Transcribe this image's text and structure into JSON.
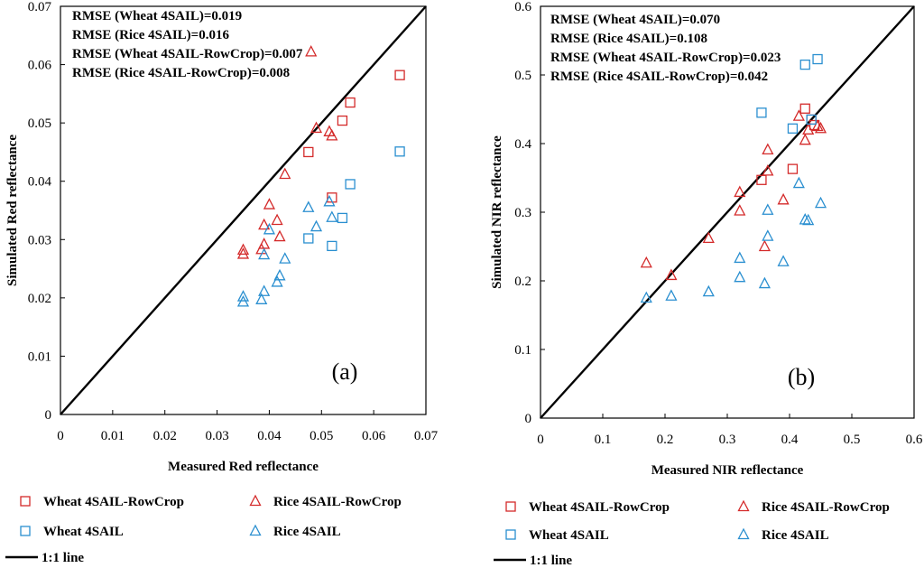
{
  "colors": {
    "red": "#d42a2a",
    "blue": "#2a8fd0",
    "axis": "#000000"
  },
  "chart_data": [
    {
      "type": "scatter",
      "panel_label": "(a)",
      "xlabel": "Measured Red  reflectance",
      "ylabel": "Simulated Red  reflectance",
      "xlim": [
        0,
        0.07
      ],
      "ylim": [
        0,
        0.07
      ],
      "xticks": [
        "0",
        "0.01",
        "0.02",
        "0.03",
        "0.04",
        "0.05",
        "0.06",
        "0.07"
      ],
      "yticks": [
        "0",
        "0.01",
        "0.02",
        "0.03",
        "0.04",
        "0.05",
        "0.06",
        "0.07"
      ],
      "annotations": [
        "RMSE (Wheat 4SAIL)=0.019",
        "RMSE (Rice 4SAIL)=0.016",
        "RMSE (Wheat 4SAIL-RowCrop)=0.007",
        "RMSE (Rice 4SAIL-RowCrop)=0.008"
      ],
      "reference_line": "1:1 line",
      "series": [
        {
          "name": "Wheat 4SAIL-RowCrop",
          "marker": "square",
          "color": "red",
          "points": [
            [
              0.0475,
              0.045
            ],
            [
              0.052,
              0.0372
            ],
            [
              0.054,
              0.0504
            ],
            [
              0.0555,
              0.0535
            ],
            [
              0.065,
              0.0582
            ]
          ]
        },
        {
          "name": "Rice 4SAIL-RowCrop",
          "marker": "triangle",
          "color": "red",
          "points": [
            [
              0.035,
              0.0282
            ],
            [
              0.035,
              0.0275
            ],
            [
              0.0385,
              0.0283
            ],
            [
              0.039,
              0.0292
            ],
            [
              0.039,
              0.0325
            ],
            [
              0.04,
              0.036
            ],
            [
              0.0415,
              0.0333
            ],
            [
              0.042,
              0.0305
            ],
            [
              0.043,
              0.0412
            ],
            [
              0.049,
              0.0491
            ],
            [
              0.0515,
              0.0485
            ],
            [
              0.052,
              0.0478
            ],
            [
              0.048,
              0.0622
            ]
          ]
        },
        {
          "name": "Wheat 4SAIL",
          "marker": "square",
          "color": "blue",
          "points": [
            [
              0.0475,
              0.0302
            ],
            [
              0.052,
              0.0289
            ],
            [
              0.054,
              0.0337
            ],
            [
              0.0555,
              0.0395
            ],
            [
              0.065,
              0.0451
            ]
          ]
        },
        {
          "name": "Rice 4SAIL",
          "marker": "triangle",
          "color": "blue",
          "points": [
            [
              0.035,
              0.0202
            ],
            [
              0.035,
              0.0193
            ],
            [
              0.0385,
              0.0197
            ],
            [
              0.039,
              0.0211
            ],
            [
              0.039,
              0.0274
            ],
            [
              0.04,
              0.0317
            ],
            [
              0.0415,
              0.0227
            ],
            [
              0.042,
              0.0238
            ],
            [
              0.043,
              0.0267
            ],
            [
              0.0475,
              0.0355
            ],
            [
              0.049,
              0.0322
            ],
            [
              0.0515,
              0.0365
            ],
            [
              0.052,
              0.0338
            ]
          ]
        }
      ]
    },
    {
      "type": "scatter",
      "panel_label": "(b)",
      "xlabel": "Measured NIR  reflectance",
      "ylabel": "Simulated NIR  reflectance",
      "xlim": [
        0,
        0.6
      ],
      "ylim": [
        0,
        0.6
      ],
      "xticks": [
        "0",
        "0.1",
        "0.2",
        "0.3",
        "0.4",
        "0.5",
        "0.6"
      ],
      "yticks": [
        "0",
        "0.1",
        "0.2",
        "0.3",
        "0.4",
        "0.5",
        "0.6"
      ],
      "annotations": [
        "RMSE (Wheat 4SAIL)=0.070",
        "RMSE (Rice 4SAIL)=0.108",
        "RMSE (Wheat 4SAIL-RowCrop)=0.023",
        "RMSE (Rice 4SAIL-RowCrop)=0.042"
      ],
      "reference_line": "1:1 line",
      "series": [
        {
          "name": "Wheat 4SAIL-RowCrop",
          "marker": "square",
          "color": "red",
          "points": [
            [
              0.355,
              0.347
            ],
            [
              0.405,
              0.363
            ],
            [
              0.425,
              0.451
            ],
            [
              0.435,
              0.435
            ],
            [
              0.44,
              0.427
            ]
          ]
        },
        {
          "name": "Rice 4SAIL-RowCrop",
          "marker": "triangle",
          "color": "red",
          "points": [
            [
              0.17,
              0.226
            ],
            [
              0.21,
              0.208
            ],
            [
              0.27,
              0.262
            ],
            [
              0.32,
              0.329
            ],
            [
              0.32,
              0.302
            ],
            [
              0.36,
              0.25
            ],
            [
              0.365,
              0.36
            ],
            [
              0.365,
              0.391
            ],
            [
              0.39,
              0.318
            ],
            [
              0.415,
              0.44
            ],
            [
              0.425,
              0.405
            ],
            [
              0.43,
              0.42
            ],
            [
              0.445,
              0.425
            ],
            [
              0.45,
              0.422
            ]
          ]
        },
        {
          "name": "Wheat 4SAIL",
          "marker": "square",
          "color": "blue",
          "points": [
            [
              0.355,
              0.445
            ],
            [
              0.405,
              0.422
            ],
            [
              0.425,
              0.515
            ],
            [
              0.435,
              0.435
            ],
            [
              0.445,
              0.523
            ]
          ]
        },
        {
          "name": "Rice 4SAIL",
          "marker": "triangle",
          "color": "blue",
          "points": [
            [
              0.17,
              0.175
            ],
            [
              0.21,
              0.178
            ],
            [
              0.27,
              0.184
            ],
            [
              0.32,
              0.233
            ],
            [
              0.32,
              0.205
            ],
            [
              0.36,
              0.196
            ],
            [
              0.365,
              0.265
            ],
            [
              0.365,
              0.303
            ],
            [
              0.39,
              0.228
            ],
            [
              0.415,
              0.342
            ],
            [
              0.425,
              0.289
            ],
            [
              0.43,
              0.288
            ],
            [
              0.45,
              0.313
            ]
          ]
        }
      ]
    }
  ]
}
